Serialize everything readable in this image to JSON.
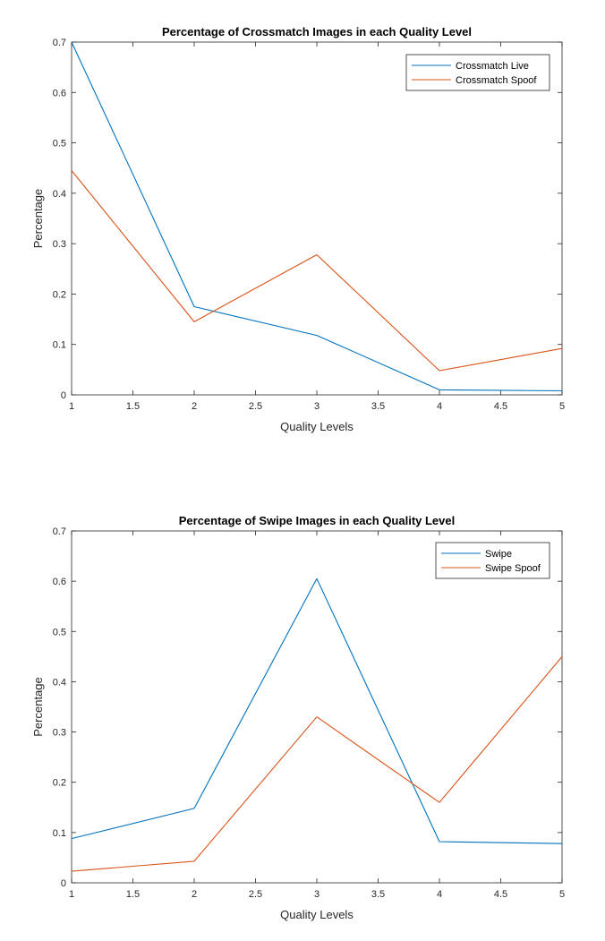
{
  "chart_data": [
    {
      "type": "line",
      "title": "Percentage of Crossmatch Images in each Quality Level",
      "xlabel": "Quality Levels",
      "ylabel": "Percentage",
      "xlim": [
        1,
        5
      ],
      "ylim": [
        0,
        0.7
      ],
      "xticks": [
        "1",
        "1.5",
        "2",
        "2.5",
        "3",
        "3.5",
        "4",
        "4.5",
        "5"
      ],
      "yticks": [
        "0",
        "0.1",
        "0.2",
        "0.3",
        "0.4",
        "0.5",
        "0.6",
        "0.7"
      ],
      "grid": false,
      "legend_position": "top-right",
      "x": [
        1,
        2,
        3,
        4,
        5
      ],
      "series": [
        {
          "name": "Crossmatch Live",
          "color": "#0072BD",
          "values": [
            0.7,
            0.175,
            0.118,
            0.01,
            0.008
          ]
        },
        {
          "name": "Crossmatch Spoof",
          "color": "#D95319",
          "values": [
            0.445,
            0.145,
            0.278,
            0.048,
            0.092
          ]
        }
      ]
    },
    {
      "type": "line",
      "title": "Percentage of Swipe Images in each Quality Level",
      "xlabel": "Quality Levels",
      "ylabel": "Percentage",
      "xlim": [
        1,
        5
      ],
      "ylim": [
        0,
        0.7
      ],
      "xticks": [
        "1",
        "1.5",
        "2",
        "2.5",
        "3",
        "3.5",
        "4",
        "4.5",
        "5"
      ],
      "yticks": [
        "0",
        "0.1",
        "0.2",
        "0.3",
        "0.4",
        "0.5",
        "0.6",
        "0.7"
      ],
      "grid": false,
      "legend_position": "top-right",
      "x": [
        1,
        2,
        3,
        4,
        5
      ],
      "series": [
        {
          "name": "Swipe",
          "color": "#0072BD",
          "values": [
            0.088,
            0.148,
            0.605,
            0.082,
            0.078
          ]
        },
        {
          "name": "Swipe Spoof",
          "color": "#D95319",
          "values": [
            0.023,
            0.043,
            0.33,
            0.16,
            0.45
          ]
        }
      ]
    }
  ]
}
